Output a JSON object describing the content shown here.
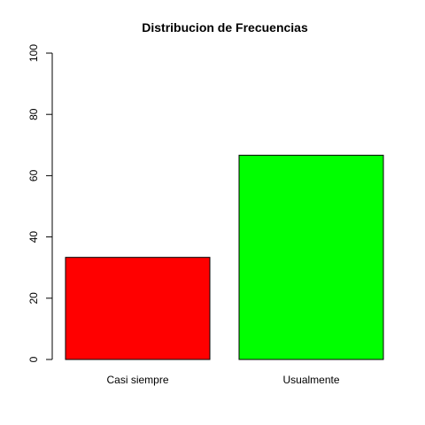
{
  "chart_data": {
    "type": "bar",
    "title": "Distribucion de Frecuencias",
    "xlabel": "",
    "ylabel": "",
    "categories": [
      "Casi siempre",
      "Usualmente"
    ],
    "values": [
      33.33,
      66.67
    ],
    "colors": [
      "#FF0000",
      "#00FF00"
    ],
    "bar_border_color": "#000000",
    "ylim": [
      0,
      100
    ],
    "yticks": [
      0,
      20,
      40,
      60,
      80,
      100
    ],
    "grid": false,
    "legend": "none"
  }
}
